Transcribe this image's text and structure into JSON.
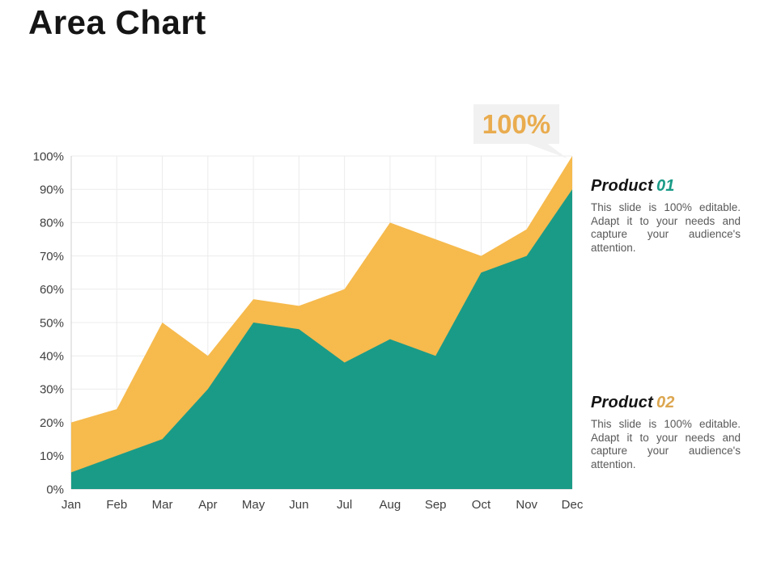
{
  "slide": {
    "title": "Area Chart"
  },
  "callout": {
    "label": "100%",
    "text_color": "#E9AC4F",
    "bubble_color": "#F1F1F1"
  },
  "products": [
    {
      "heading_prefix": "Product",
      "heading_number": "01",
      "number_color": "#1A9B87",
      "description": "This slide is 100% editable. Adapt it to your needs and capture your audience's attention."
    },
    {
      "heading_prefix": "Product",
      "heading_number": "02",
      "number_color": "#DCA64F",
      "description": "This slide is 100% editable. Adapt it to your needs and capture your audience's attention."
    }
  ],
  "chart_data": {
    "type": "area",
    "title": "",
    "categories": [
      "Jan",
      "Feb",
      "Mar",
      "Apr",
      "May",
      "Jun",
      "Jul",
      "Aug",
      "Sep",
      "Oct",
      "Nov",
      "Dec"
    ],
    "series": [
      {
        "name": "Product 02",
        "color": "#F6BA4D",
        "values": [
          20,
          24,
          50,
          40,
          57,
          55,
          60,
          80,
          75,
          70,
          78,
          100
        ]
      },
      {
        "name": "Product 01",
        "color": "#1A9B87",
        "values": [
          5,
          10,
          15,
          30,
          50,
          48,
          38,
          45,
          40,
          65,
          70,
          90
        ]
      }
    ],
    "ylim": [
      0,
      100
    ],
    "yticks": [
      "0%",
      "10%",
      "20%",
      "30%",
      "40%",
      "50%",
      "60%",
      "70%",
      "80%",
      "90%",
      "100%"
    ],
    "grid": true,
    "legend": "none",
    "annotation": {
      "text": "100%",
      "target_category": "Dec",
      "target_value": 100
    },
    "grid_color": "#ECECEC",
    "axis_color": "#CFCFCF",
    "tick_label_color": "#3F3F3F"
  }
}
